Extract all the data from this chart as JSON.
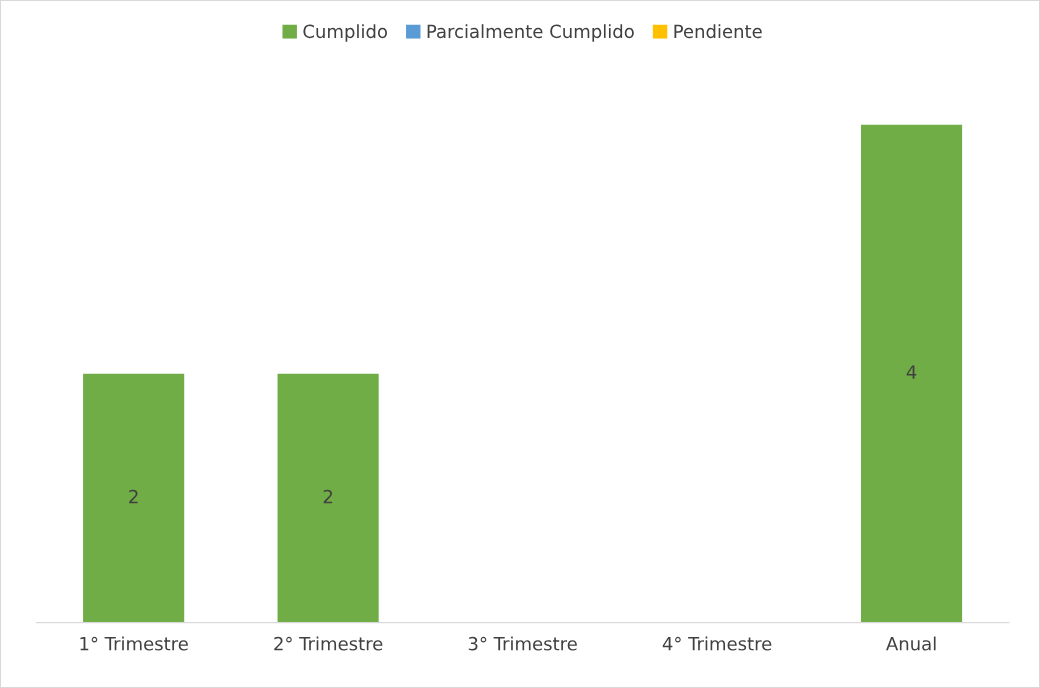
{
  "chart_data": {
    "type": "bar",
    "stacked": true,
    "categories": [
      "1° Trimestre",
      "2° Trimestre",
      "3° Trimestre",
      "4° Trimestre",
      "Anual"
    ],
    "series": [
      {
        "name": "Cumplido",
        "color": "#70ad47",
        "values": [
          2,
          2,
          null,
          null,
          4
        ]
      },
      {
        "name": "Parcialmente Cumplido",
        "color": "#5b9bd5",
        "values": [
          null,
          null,
          null,
          null,
          null
        ]
      },
      {
        "name": "Pendiente",
        "color": "#ffc000",
        "values": [
          null,
          null,
          null,
          null,
          null
        ]
      }
    ],
    "data_labels": true,
    "legend": "top",
    "grid": false,
    "tick_labels": "x"
  }
}
